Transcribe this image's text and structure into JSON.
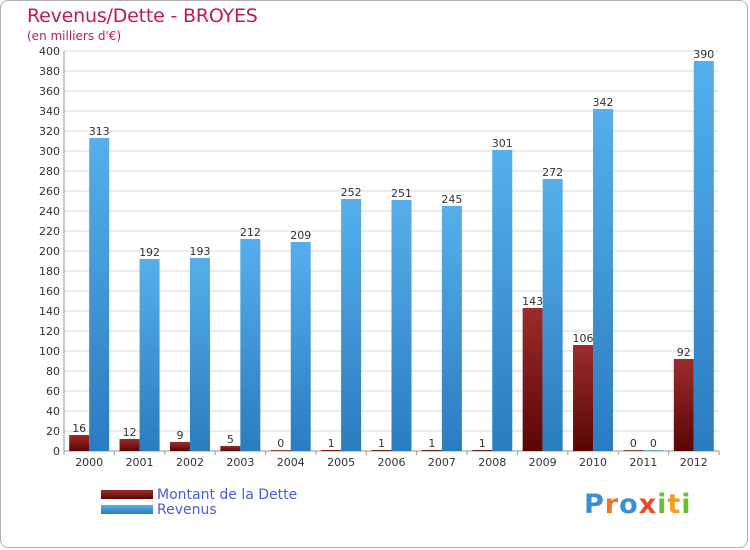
{
  "header": {
    "title": "Revenus/Dette - BROYES",
    "subtitle": "(en milliers d'€)"
  },
  "logo": {
    "text": "Proxiti"
  },
  "colors": {
    "dette": "#8b1a1a",
    "dette_dark": "#4a0000",
    "revenus": "#4aa3e3",
    "revenus_dark": "#1f6fb3",
    "grid": "#d8d8d8",
    "axis_text": "#333333",
    "title": "#c2185b",
    "legend_text": "#4a5dd6"
  },
  "chart_data": {
    "type": "bar",
    "title": "Revenus/Dette - BROYES",
    "subtitle": "(en milliers d'€)",
    "categories": [
      "2000",
      "2001",
      "2002",
      "2003",
      "2004",
      "2005",
      "2006",
      "2007",
      "2008",
      "2009",
      "2010",
      "2011",
      "2012"
    ],
    "series": [
      {
        "name": "Montant de la Dette",
        "values": [
          16,
          12,
          9,
          5,
          0,
          1,
          1,
          1,
          1,
          143,
          106,
          0,
          92
        ]
      },
      {
        "name": "Revenus",
        "values": [
          313,
          192,
          193,
          212,
          209,
          252,
          251,
          245,
          301,
          272,
          342,
          0,
          390
        ]
      }
    ],
    "ylim": [
      0,
      400
    ],
    "ytick_step": 20,
    "grid": true,
    "legend": "bottom-left"
  }
}
